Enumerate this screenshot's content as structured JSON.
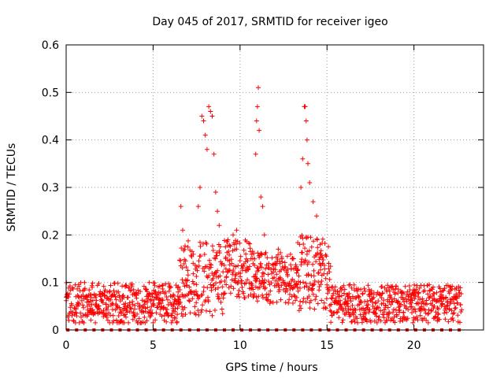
{
  "chart_data": {
    "type": "scatter",
    "title": "Day 045 of 2017, SRMTID for receiver igeo",
    "xlabel": "GPS time / hours",
    "ylabel": "SRMTID / TECUs",
    "xlim": [
      0,
      24
    ],
    "ylim": [
      0,
      0.6
    ],
    "xticks": [
      0,
      5,
      10,
      15,
      20
    ],
    "yticks": [
      0,
      0.1,
      0.2,
      0.3,
      0.4,
      0.5,
      0.6
    ],
    "xtick_labels": [
      "0",
      "5",
      "10",
      "15",
      "20"
    ],
    "ytick_labels": [
      "0",
      "0.1",
      "0.2",
      "0.3",
      "0.4",
      "0.5",
      "0.6"
    ],
    "grid": true,
    "marker": "+",
    "series_color": "#ff0000",
    "zero_marker_color": "#ff0000",
    "x_range_hours": [
      0,
      22.75
    ],
    "points": [
      [
        7.6,
        0.26
      ],
      [
        7.7,
        0.3
      ],
      [
        7.8,
        0.45
      ],
      [
        7.9,
        0.44
      ],
      [
        8.0,
        0.41
      ],
      [
        8.1,
        0.38
      ],
      [
        8.2,
        0.47
      ],
      [
        8.3,
        0.46
      ],
      [
        8.4,
        0.45
      ],
      [
        8.5,
        0.37
      ],
      [
        8.6,
        0.29
      ],
      [
        8.7,
        0.25
      ],
      [
        8.8,
        0.22
      ],
      [
        10.9,
        0.37
      ],
      [
        10.95,
        0.44
      ],
      [
        11.0,
        0.47
      ],
      [
        11.05,
        0.51
      ],
      [
        11.1,
        0.42
      ],
      [
        11.2,
        0.28
      ],
      [
        11.3,
        0.26
      ],
      [
        11.4,
        0.2
      ],
      [
        13.5,
        0.3
      ],
      [
        13.6,
        0.36
      ],
      [
        13.7,
        0.47
      ],
      [
        13.75,
        0.47
      ],
      [
        13.8,
        0.44
      ],
      [
        13.85,
        0.4
      ],
      [
        13.9,
        0.35
      ],
      [
        14.0,
        0.31
      ],
      [
        14.2,
        0.27
      ],
      [
        14.4,
        0.24
      ],
      [
        14.6,
        0.18
      ],
      [
        6.6,
        0.26
      ],
      [
        6.7,
        0.21
      ],
      [
        6.8,
        0.17
      ],
      [
        9.3,
        0.19
      ],
      [
        9.6,
        0.2
      ],
      [
        9.8,
        0.21
      ],
      [
        12.2,
        0.17
      ],
      [
        12.4,
        0.15
      ],
      [
        15.1,
        0.14
      ]
    ],
    "baseline_description": "dense noise between 0.02 and 0.14 TECU across 0–22.75 h, elevated 0.1–0.25 TECU between 6.5 h and 15 h"
  }
}
